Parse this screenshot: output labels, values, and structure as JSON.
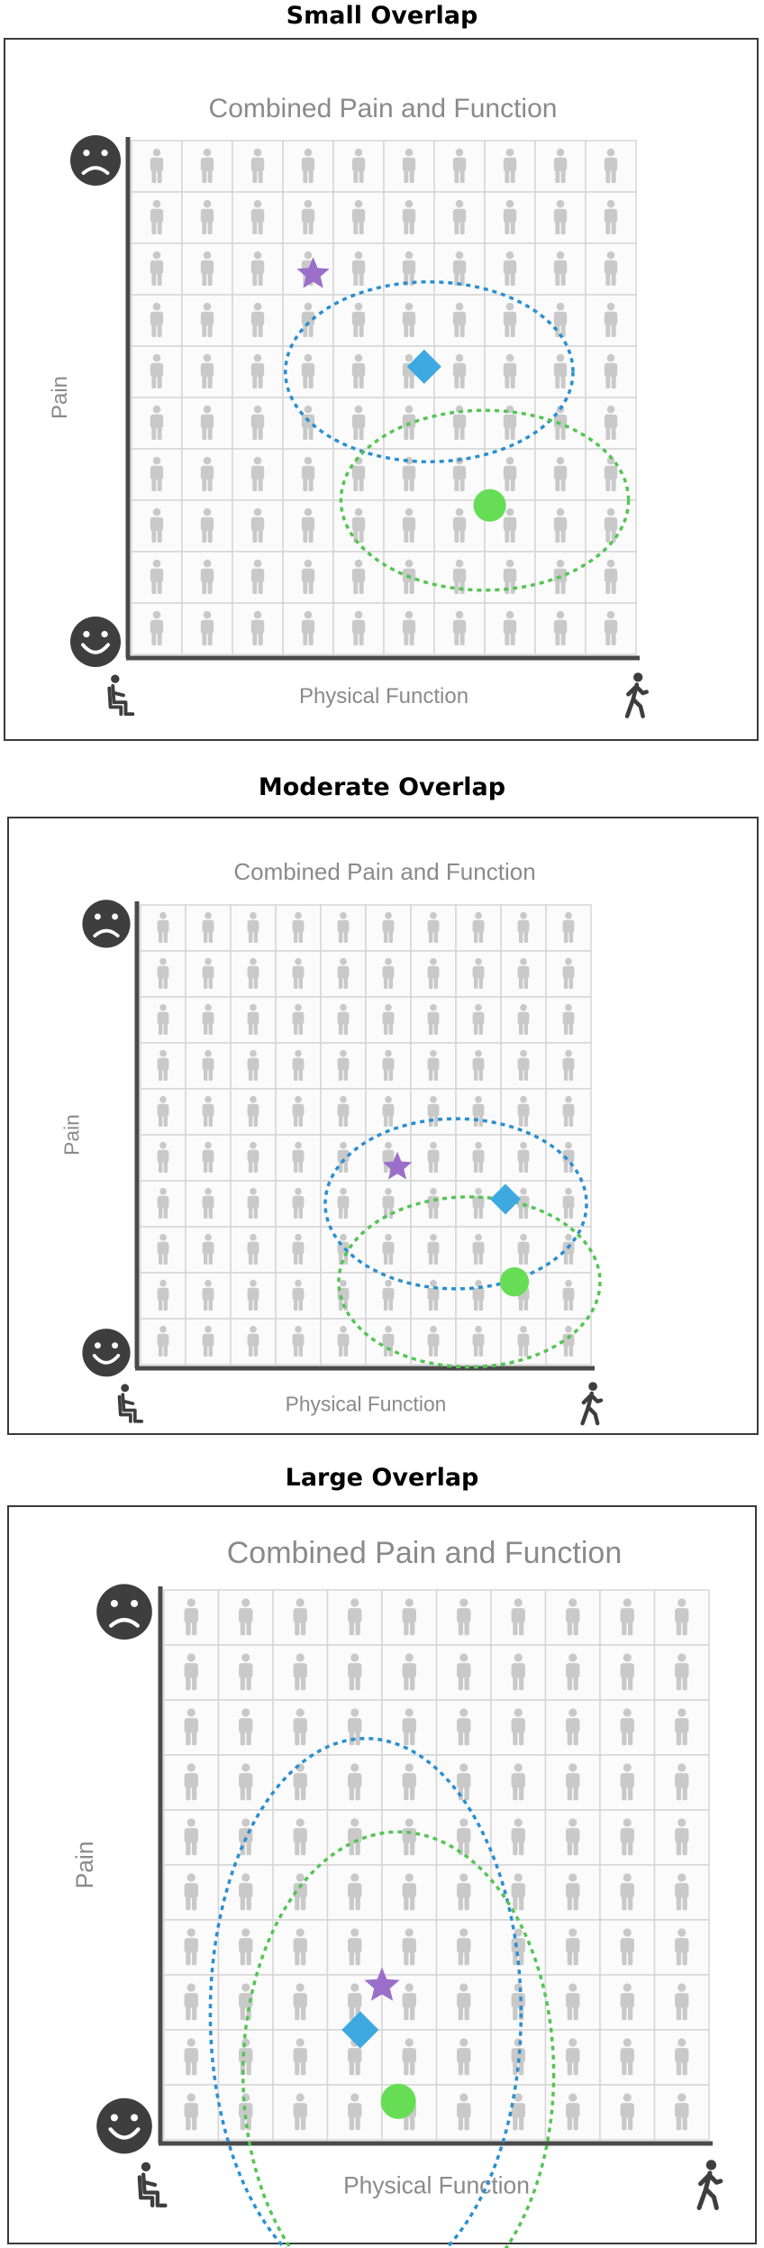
{
  "figure": {
    "panels": [
      {
        "heading": "Small Overlap",
        "title": "Combined Pain and Function",
        "x_label": "Physical Function",
        "y_label": "Pain",
        "grid": {
          "columns": 10,
          "rows": 10,
          "person_color": "#c9c9c9"
        },
        "icons": {
          "top_left": "sad-face-icon",
          "bottom_left": "happy-face-icon",
          "x_start": "seated-person-icon",
          "x_end": "walking-person-icon"
        },
        "markers": [
          {
            "shape": "star",
            "color": "#9b6fc9",
            "col": 3.6,
            "row": 2.6
          },
          {
            "shape": "diamond",
            "color": "#3da9e0",
            "col": 5.8,
            "row": 4.4
          },
          {
            "shape": "circle",
            "color": "#66dd55",
            "col": 7.1,
            "row": 7.1
          }
        ],
        "ellipses": [
          {
            "color": "#2b8fd0",
            "col": 5.9,
            "row": 4.5,
            "rx_cols": 2.85,
            "ry_rows": 1.75
          },
          {
            "color": "#55c455",
            "col": 7.0,
            "row": 7.0,
            "rx_cols": 2.85,
            "ry_rows": 1.75
          }
        ]
      },
      {
        "heading": "Moderate Overlap",
        "title": "Combined Pain and Function",
        "x_label": "Physical Function",
        "y_label": "Pain",
        "grid": {
          "columns": 10,
          "rows": 10,
          "person_color": "#c9c9c9"
        },
        "icons": {
          "top_left": "sad-face-icon",
          "bottom_left": "happy-face-icon",
          "x_start": "seated-person-icon",
          "x_end": "walking-person-icon"
        },
        "markers": [
          {
            "shape": "star",
            "color": "#9b6fc9",
            "col": 5.7,
            "row": 5.7
          },
          {
            "shape": "diamond",
            "color": "#3da9e0",
            "col": 8.1,
            "row": 6.4
          },
          {
            "shape": "circle",
            "color": "#66dd55",
            "col": 8.3,
            "row": 8.2
          }
        ],
        "ellipses": [
          {
            "color": "#2b8fd0",
            "col": 7.0,
            "row": 6.5,
            "rx_cols": 2.9,
            "ry_rows": 1.85
          },
          {
            "color": "#55c455",
            "col": 7.3,
            "row": 8.2,
            "rx_cols": 2.9,
            "ry_rows": 1.85
          }
        ]
      },
      {
        "heading": "Large Overlap",
        "title": "Combined Pain and Function",
        "x_label": "Physical Function",
        "y_label": "Pain",
        "grid": {
          "columns": 10,
          "rows": 10,
          "person_color": "#c9c9c9"
        },
        "icons": {
          "top_left": "sad-face-icon",
          "bottom_left": "happy-face-icon",
          "x_start": "seated-person-icon",
          "x_end": "walking-person-icon"
        },
        "markers": [
          {
            "shape": "star",
            "color": "#9b6fc9",
            "col": 4.0,
            "row": 7.2
          },
          {
            "shape": "diamond",
            "color": "#3da9e0",
            "col": 3.6,
            "row": 8.0
          },
          {
            "shape": "circle",
            "color": "#66dd55",
            "col": 4.3,
            "row": 9.3
          }
        ],
        "ellipses": [
          {
            "color": "#2b8fd0",
            "col": 3.7,
            "row": 7.7,
            "rx_cols": 2.85,
            "ry_rows": 5.0
          },
          {
            "color": "#55c455",
            "col": 4.3,
            "row": 8.8,
            "rx_cols": 2.85,
            "ry_rows": 4.4
          }
        ]
      }
    ]
  }
}
